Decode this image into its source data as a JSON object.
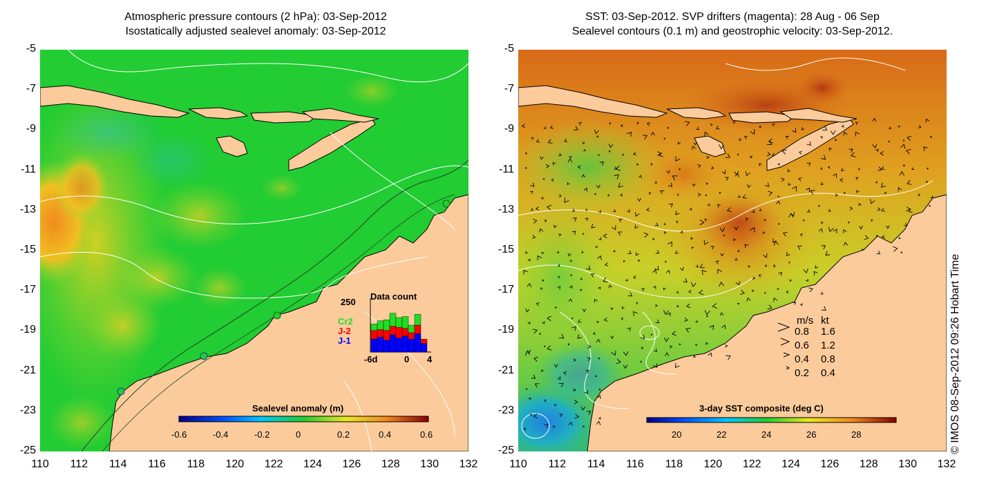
{
  "left_panel": {
    "title_line1": "Atmospheric pressure contours (2 hPa): 03-Sep-2012",
    "title_line2": "Isostatically adjusted sealevel anomaly: 03-Sep-2012",
    "colorbar_label": "Sealevel anomaly (m)",
    "colorbar_ticks": [
      "-0.6",
      "-0.4",
      "-0.2",
      "0",
      "0.2",
      "0.4",
      "0.6"
    ],
    "inset": {
      "title": "Data count",
      "ymax_label": "250",
      "x_labels": [
        "-6d",
        "0",
        "4"
      ],
      "series": [
        {
          "name": "Cr2",
          "color": "#22dd22"
        },
        {
          "name": "J-2",
          "color": "#ff0000"
        },
        {
          "name": "J-1",
          "color": "#0000ff"
        }
      ],
      "bars": [
        {
          "j1": 60,
          "j2": 40,
          "cr2": 30
        },
        {
          "j1": 70,
          "j2": 35,
          "cr2": 40
        },
        {
          "j1": 55,
          "j2": 45,
          "cr2": 50
        },
        {
          "j1": 80,
          "j2": 40,
          "cr2": 60
        },
        {
          "j1": 65,
          "j2": 50,
          "cr2": 45
        },
        {
          "j1": 75,
          "j2": 35,
          "cr2": 55
        },
        {
          "j1": 60,
          "j2": 30,
          "cr2": 35
        },
        {
          "j1": 85,
          "j2": 40,
          "cr2": 50
        },
        {
          "j1": 40,
          "j2": 20,
          "cr2": 0
        }
      ]
    }
  },
  "right_panel": {
    "title_line1": "SST: 03-Sep-2012. SVP drifters (magenta): 28 Aug - 06 Sep",
    "title_line2": "Sealevel contours (0.1 m) and geostrophic velocity: 03-Sep-2012.",
    "colorbar_label": "3-day SST composite (deg C)",
    "colorbar_ticks": [
      "20",
      "22",
      "24",
      "26",
      "28"
    ],
    "velocity_legend": {
      "header_ms": "m/s",
      "header_kt": "kt",
      "rows": [
        {
          "ms": "0.8",
          "kt": "1.6"
        },
        {
          "ms": "0.6",
          "kt": "1.2"
        },
        {
          "ms": "0.4",
          "kt": "0.8"
        },
        {
          "ms": "0.2",
          "kt": "0.4"
        }
      ]
    }
  },
  "axes": {
    "y_ticks": [
      "-5",
      "-7",
      "-9",
      "-11",
      "-13",
      "-15",
      "-17",
      "-19",
      "-21",
      "-23",
      "-25"
    ],
    "x_ticks": [
      "110",
      "112",
      "114",
      "116",
      "118",
      "120",
      "122",
      "124",
      "126",
      "128",
      "130",
      "132"
    ]
  },
  "credit": "© IMOS 08-Sep-2012 09:26 Hobart Time",
  "colors": {
    "land": "#fbcb9c",
    "sla_green": "#22cc33",
    "sst_orange": "#e08a1e"
  }
}
